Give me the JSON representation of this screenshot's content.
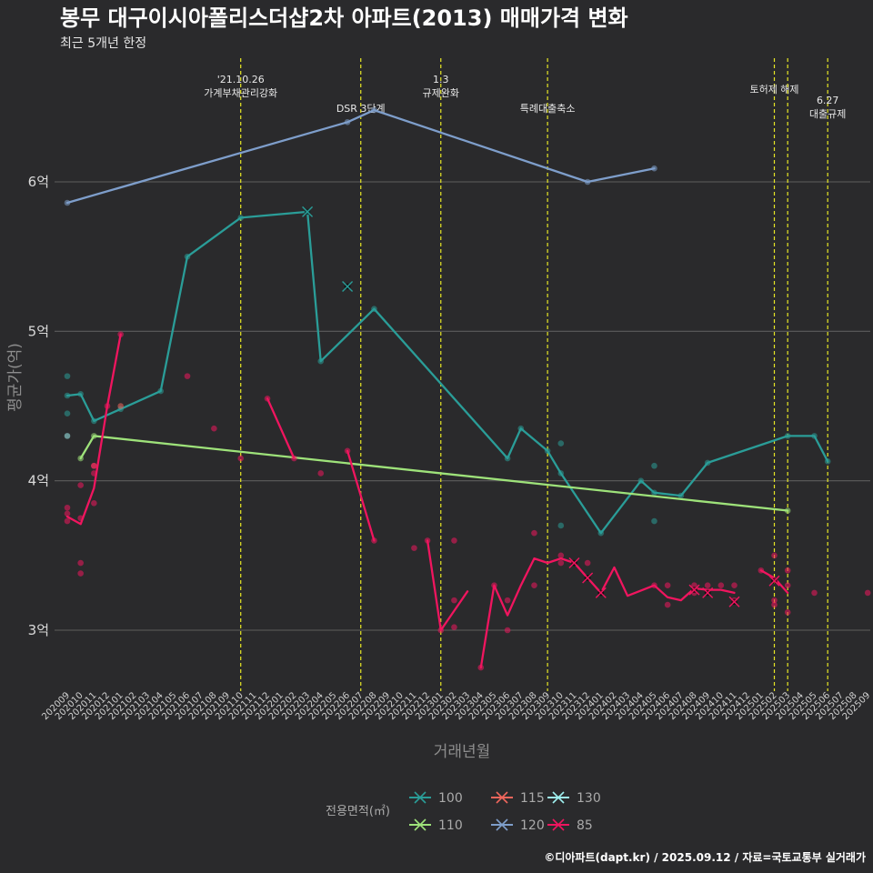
{
  "chart_data": {
    "type": "line",
    "title": "봉무 대구이시아폴리스더샵2차 아파트(2013) 매매가격 변화",
    "subtitle": "최근 5개년 한정",
    "xlabel": "거래년월",
    "ylabel": "평균가(억)",
    "caption": "©디아파트(dapt.kr) / 2025.09.12 / 자료=국토교통부 실거래가",
    "x_categories": [
      "202009",
      "202010",
      "202011",
      "202012",
      "202101",
      "202102",
      "202103",
      "202104",
      "202105",
      "202106",
      "202107",
      "202108",
      "202109",
      "202110",
      "202111",
      "202112",
      "202201",
      "202202",
      "202203",
      "202204",
      "202205",
      "202206",
      "202207",
      "202208",
      "202209",
      "202210",
      "202211",
      "202212",
      "202301",
      "202302",
      "202303",
      "202304",
      "202305",
      "202306",
      "202307",
      "202308",
      "202309",
      "202310",
      "202311",
      "202312",
      "202401",
      "202402",
      "202403",
      "202404",
      "202405",
      "202406",
      "202407",
      "202408",
      "202409",
      "202410",
      "202411",
      "202412",
      "202501",
      "202502",
      "202503",
      "202504",
      "202505",
      "202506",
      "202507",
      "202508",
      "202509"
    ],
    "y_ticks": [
      {
        "value": 3,
        "label": "3억"
      },
      {
        "value": 4,
        "label": "4억"
      },
      {
        "value": 5,
        "label": "5억"
      },
      {
        "value": 6,
        "label": "6억"
      }
    ],
    "ylim": [
      2.6,
      6.85
    ],
    "grid": "horizontal",
    "events": [
      {
        "x": "202110",
        "label_lines": [
          "'21.10.26",
          "가계부채관리강화"
        ],
        "label_row": 0
      },
      {
        "x": "202207",
        "label_lines": [
          "DSR 3단계"
        ],
        "label_row": 2
      },
      {
        "x": "202301",
        "label_lines": [
          "1.3",
          "규제완화"
        ],
        "label_row": 0
      },
      {
        "x": "202309",
        "label_lines": [
          "특례대출축소"
        ],
        "label_row": 2
      },
      {
        "x": "202502",
        "label_lines": [
          "토허제 해제"
        ],
        "label_row": 1
      },
      {
        "x": "202503",
        "label_lines": [],
        "label_row": 1
      },
      {
        "x": "202506",
        "label_lines": [
          "6.27",
          "대출규제"
        ],
        "label_row": 3
      }
    ],
    "legend": {
      "title": "전용면적(㎡)",
      "items": [
        {
          "label": "100",
          "color": "#2a9d98"
        },
        {
          "label": "110",
          "color": "#9ee27a"
        },
        {
          "label": "115",
          "color": "#f0665c"
        },
        {
          "label": "120",
          "color": "#7e9ecb"
        },
        {
          "label": "130",
          "color": "#9ff0f0"
        },
        {
          "label": "85",
          "color": "#f0155f"
        }
      ]
    },
    "series": [
      {
        "name": "100",
        "color": "#2a9d98",
        "line": [
          [
            "202009",
            4.57
          ],
          [
            "202010",
            4.58
          ],
          [
            "202011",
            4.4
          ],
          [
            "202101",
            4.48
          ],
          [
            "202104",
            4.6
          ],
          [
            "202106",
            5.5
          ],
          [
            "202110",
            5.76
          ],
          [
            "202203",
            5.8
          ],
          [
            "202204",
            4.8
          ],
          [
            "202208",
            5.15
          ],
          [
            "202306",
            4.15
          ],
          [
            "202307",
            4.35
          ],
          [
            "202309",
            4.2
          ],
          [
            "202310",
            4.05
          ],
          [
            "202401",
            3.65
          ],
          [
            "202404",
            4.0
          ],
          [
            "202405",
            3.92
          ],
          [
            "202407",
            3.9
          ],
          [
            "202409",
            4.12
          ],
          [
            "202503",
            4.3
          ],
          [
            "202505",
            4.3
          ],
          [
            "202506",
            4.13
          ]
        ],
        "points": [
          [
            "202009",
            4.7
          ],
          [
            "202009",
            4.45
          ],
          [
            "202009",
            4.57
          ],
          [
            "202010",
            4.58
          ],
          [
            "202011",
            4.4
          ],
          [
            "202101",
            4.48
          ],
          [
            "202104",
            4.6
          ],
          [
            "202106",
            5.5
          ],
          [
            "202110",
            5.76
          ],
          [
            "202203",
            5.8
          ],
          [
            "202204",
            4.8
          ],
          [
            "202208",
            5.15
          ],
          [
            "202306",
            4.15
          ],
          [
            "202307",
            4.35
          ],
          [
            "202309",
            4.2
          ],
          [
            "202310",
            4.25
          ],
          [
            "202310",
            4.05
          ],
          [
            "202310",
            3.7
          ],
          [
            "202401",
            3.65
          ],
          [
            "202404",
            4.0
          ],
          [
            "202405",
            4.1
          ],
          [
            "202405",
            3.73
          ],
          [
            "202405",
            3.92
          ],
          [
            "202407",
            3.9
          ],
          [
            "202409",
            4.12
          ],
          [
            "202503",
            4.3
          ],
          [
            "202505",
            4.3
          ],
          [
            "202506",
            4.13
          ]
        ],
        "crosses": [
          [
            "202203",
            5.8
          ],
          [
            "202206",
            5.3
          ]
        ]
      },
      {
        "name": "110",
        "color": "#9ee27a",
        "line": [
          [
            "202010",
            4.15
          ],
          [
            "202011",
            4.3
          ],
          [
            "202503",
            3.8
          ]
        ],
        "points": [
          [
            "202010",
            4.15
          ],
          [
            "202011",
            4.3
          ],
          [
            "202503",
            3.8
          ]
        ],
        "crosses": []
      },
      {
        "name": "115",
        "color": "#f0665c",
        "line": [],
        "points": [
          [
            "202011",
            4.1
          ],
          [
            "202101",
            4.5
          ]
        ],
        "crosses": []
      },
      {
        "name": "120",
        "color": "#7e9ecb",
        "line": [
          [
            "202009",
            5.86
          ],
          [
            "202206",
            6.4
          ],
          [
            "202208",
            6.48
          ],
          [
            "202312",
            6.0
          ],
          [
            "202405",
            6.09
          ]
        ],
        "points": [
          [
            "202009",
            5.86
          ],
          [
            "202206",
            6.4
          ],
          [
            "202208",
            6.48
          ],
          [
            "202312",
            6.0
          ],
          [
            "202405",
            6.09
          ]
        ],
        "crosses": []
      },
      {
        "name": "130",
        "color": "#9ff0f0",
        "line": [],
        "points": [
          [
            "202009",
            4.3
          ]
        ],
        "crosses": []
      },
      {
        "name": "85",
        "color": "#f0155f",
        "segments": [
          [
            [
              "202009",
              3.76
            ],
            [
              "202010",
              3.71
            ],
            [
              "202011",
              3.95
            ],
            [
              "202012",
              4.5
            ],
            [
              "202101",
              4.98
            ]
          ],
          [
            [
              "202112",
              4.55
            ],
            [
              "202202",
              4.15
            ]
          ],
          [
            [
              "202206",
              4.2
            ],
            [
              "202208",
              3.6
            ]
          ],
          [
            [
              "202212",
              3.6
            ],
            [
              "202301",
              3.0
            ],
            [
              "202303",
              3.26
            ]
          ],
          [
            [
              "202304",
              2.75
            ],
            [
              "202305",
              3.3
            ],
            [
              "202306",
              3.1
            ],
            [
              "202307",
              3.3
            ],
            [
              "202308",
              3.48
            ],
            [
              "202309",
              3.45
            ],
            [
              "202310",
              3.48
            ],
            [
              "202311",
              3.45
            ],
            [
              "202312",
              3.35
            ],
            [
              "202401",
              3.25
            ],
            [
              "202402",
              3.42
            ],
            [
              "202403",
              3.23
            ],
            [
              "202405",
              3.3
            ],
            [
              "202406",
              3.22
            ],
            [
              "202407",
              3.2
            ],
            [
              "202408",
              3.28
            ],
            [
              "202409",
              3.27
            ],
            [
              "202410",
              3.27
            ],
            [
              "202411",
              3.25
            ]
          ],
          [
            [
              "202501",
              3.4
            ],
            [
              "202502",
              3.35
            ],
            [
              "202503",
              3.25
            ]
          ]
        ],
        "points": [
          [
            "202009",
            3.82
          ],
          [
            "202009",
            3.78
          ],
          [
            "202009",
            3.73
          ],
          [
            "202010",
            3.97
          ],
          [
            "202010",
            3.75
          ],
          [
            "202010",
            3.45
          ],
          [
            "202010",
            3.38
          ],
          [
            "202011",
            3.85
          ],
          [
            "202011",
            4.05
          ],
          [
            "202011",
            4.1
          ],
          [
            "202012",
            4.5
          ],
          [
            "202101",
            4.98
          ],
          [
            "202106",
            4.7
          ],
          [
            "202108",
            4.35
          ],
          [
            "202110",
            4.15
          ],
          [
            "202112",
            4.55
          ],
          [
            "202202",
            4.15
          ],
          [
            "202204",
            4.05
          ],
          [
            "202206",
            4.2
          ],
          [
            "202208",
            3.6
          ],
          [
            "202211",
            3.55
          ],
          [
            "202212",
            3.6
          ],
          [
            "202301",
            3.0
          ],
          [
            "202302",
            3.6
          ],
          [
            "202302",
            3.2
          ],
          [
            "202302",
            3.02
          ],
          [
            "202304",
            2.75
          ],
          [
            "202305",
            3.3
          ],
          [
            "202306",
            3.2
          ],
          [
            "202306",
            3.0
          ],
          [
            "202308",
            3.65
          ],
          [
            "202308",
            3.3
          ],
          [
            "202310",
            3.5
          ],
          [
            "202310",
            3.45
          ],
          [
            "202312",
            3.45
          ],
          [
            "202405",
            3.3
          ],
          [
            "202406",
            3.3
          ],
          [
            "202406",
            3.17
          ],
          [
            "202408",
            3.3
          ],
          [
            "202408",
            3.25
          ],
          [
            "202409",
            3.3
          ],
          [
            "202410",
            3.3
          ],
          [
            "202411",
            3.3
          ],
          [
            "202411",
            3.2
          ],
          [
            "202501",
            3.4
          ],
          [
            "202502",
            3.5
          ],
          [
            "202502",
            3.2
          ],
          [
            "202502",
            3.17
          ],
          [
            "202503",
            3.4
          ],
          [
            "202503",
            3.3
          ],
          [
            "202503",
            3.12
          ],
          [
            "202505",
            3.25
          ],
          [
            "202509",
            3.25
          ]
        ],
        "crosses": [
          [
            "202311",
            3.45
          ],
          [
            "202312",
            3.35
          ],
          [
            "202401",
            3.25
          ],
          [
            "202408",
            3.27
          ],
          [
            "202409",
            3.25
          ],
          [
            "202411",
            3.19
          ],
          [
            "202502",
            3.33
          ]
        ]
      }
    ]
  }
}
